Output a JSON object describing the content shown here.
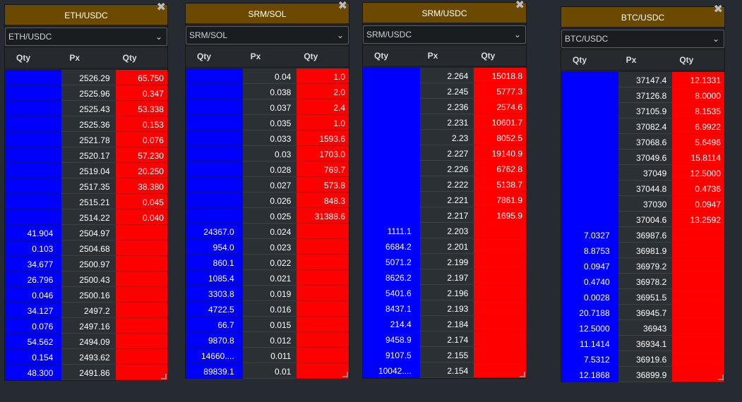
{
  "colors": {
    "title_bar": "#6b4a00",
    "bid": "#0000ff",
    "ask": "#ff0000",
    "price_bg": "#2b3034",
    "background": "#262b31"
  },
  "panels": [
    {
      "title": "ETH/USDC",
      "symbol": "ETH/USDC",
      "headers": [
        "Qty",
        "Px",
        "Qty"
      ],
      "rows": [
        [
          "",
          "2526.29",
          "65.750"
        ],
        [
          "",
          "2525.96",
          "0.347"
        ],
        [
          "",
          "2525.43",
          "53.338"
        ],
        [
          "",
          "2525.36",
          "0.153"
        ],
        [
          "",
          "2521.78",
          "0.076"
        ],
        [
          "",
          "2520.17",
          "57.230"
        ],
        [
          "",
          "2519.04",
          "20.250"
        ],
        [
          "",
          "2517.35",
          "38.380"
        ],
        [
          "",
          "2515.21",
          "0.045"
        ],
        [
          "",
          "2514.22",
          "0.040"
        ],
        [
          "41.904",
          "2504.97",
          ""
        ],
        [
          "0.103",
          "2504.68",
          ""
        ],
        [
          "34.677",
          "2500.97",
          ""
        ],
        [
          "26.796",
          "2500.43",
          ""
        ],
        [
          "0.046",
          "2500.16",
          ""
        ],
        [
          "34.127",
          "2497.2",
          ""
        ],
        [
          "0.076",
          "2497.16",
          ""
        ],
        [
          "54.562",
          "2494.09",
          ""
        ],
        [
          "0.154",
          "2493.62",
          ""
        ],
        [
          "48.300",
          "2491.86",
          ""
        ]
      ]
    },
    {
      "title": "SRM/SOL",
      "symbol": "SRM/SOL",
      "headers": [
        "Qty",
        "Px",
        "Qty"
      ],
      "rows": [
        [
          "",
          "0.04",
          "1.0"
        ],
        [
          "",
          "0.038",
          "2.0"
        ],
        [
          "",
          "0.037",
          "2.4"
        ],
        [
          "",
          "0.035",
          "1.0"
        ],
        [
          "",
          "0.033",
          "1593.6"
        ],
        [
          "",
          "0.03",
          "1703.0"
        ],
        [
          "",
          "0.028",
          "769.7"
        ],
        [
          "",
          "0.027",
          "573.8"
        ],
        [
          "",
          "0.026",
          "848.3"
        ],
        [
          "",
          "0.025",
          "31388.6"
        ],
        [
          "24367.0",
          "0.024",
          ""
        ],
        [
          "954.0",
          "0.023",
          ""
        ],
        [
          "860.1",
          "0.022",
          ""
        ],
        [
          "1085.4",
          "0.021",
          ""
        ],
        [
          "3303.8",
          "0.019",
          ""
        ],
        [
          "4722.5",
          "0.016",
          ""
        ],
        [
          "66.7",
          "0.015",
          ""
        ],
        [
          "9870.8",
          "0.012",
          ""
        ],
        [
          "14660....",
          "0.011",
          ""
        ],
        [
          "89839.1",
          "0.01",
          ""
        ]
      ]
    },
    {
      "title": "SRM/USDC",
      "symbol": "SRM/USDC",
      "headers": [
        "Qty",
        "Px",
        "Qty"
      ],
      "rows": [
        [
          "",
          "2.264",
          "15018.8"
        ],
        [
          "",
          "2.245",
          "5777.3"
        ],
        [
          "",
          "2.236",
          "2574.6"
        ],
        [
          "",
          "2.231",
          "10601.7"
        ],
        [
          "",
          "2.23",
          "8052.5"
        ],
        [
          "",
          "2.227",
          "19140.9"
        ],
        [
          "",
          "2.226",
          "6762.8"
        ],
        [
          "",
          "2.222",
          "5138.7"
        ],
        [
          "",
          "2.221",
          "7861.9"
        ],
        [
          "",
          "2.217",
          "1695.9"
        ],
        [
          "1111.1",
          "2.203",
          ""
        ],
        [
          "6684.2",
          "2.201",
          ""
        ],
        [
          "5071.2",
          "2.199",
          ""
        ],
        [
          "8626.2",
          "2.197",
          ""
        ],
        [
          "5401.6",
          "2.196",
          ""
        ],
        [
          "8437.1",
          "2.193",
          ""
        ],
        [
          "214.4",
          "2.184",
          ""
        ],
        [
          "9458.9",
          "2.174",
          ""
        ],
        [
          "9107.5",
          "2.155",
          ""
        ],
        [
          "10042....",
          "2.154",
          ""
        ]
      ]
    },
    {
      "title": "BTC/USDC",
      "symbol": "BTC/USDC",
      "headers": [
        "Qty",
        "Px",
        "Qty"
      ],
      "rows": [
        [
          "",
          "37147.4",
          "12.1331"
        ],
        [
          "",
          "37126.8",
          "8.0000"
        ],
        [
          "",
          "37105.9",
          "8.1535"
        ],
        [
          "",
          "37082.4",
          "6.9922"
        ],
        [
          "",
          "37068.6",
          "5.6496"
        ],
        [
          "",
          "37049.6",
          "15.8114"
        ],
        [
          "",
          "37049",
          "12.5000"
        ],
        [
          "",
          "37044.8",
          "0.4736"
        ],
        [
          "",
          "37030",
          "0.0947"
        ],
        [
          "",
          "37004.6",
          "13.2592"
        ],
        [
          "7.0327",
          "36987.6",
          ""
        ],
        [
          "8.8753",
          "36981.9",
          ""
        ],
        [
          "0.0947",
          "36979.2",
          ""
        ],
        [
          "0.4740",
          "36978.2",
          ""
        ],
        [
          "0.0028",
          "36951.5",
          ""
        ],
        [
          "20.7188",
          "36945.7",
          ""
        ],
        [
          "12.5000",
          "36943",
          ""
        ],
        [
          "11.1414",
          "36934.1",
          ""
        ],
        [
          "7.5312",
          "36919.6",
          ""
        ],
        [
          "12.1868",
          "36899.9",
          ""
        ]
      ]
    }
  ]
}
